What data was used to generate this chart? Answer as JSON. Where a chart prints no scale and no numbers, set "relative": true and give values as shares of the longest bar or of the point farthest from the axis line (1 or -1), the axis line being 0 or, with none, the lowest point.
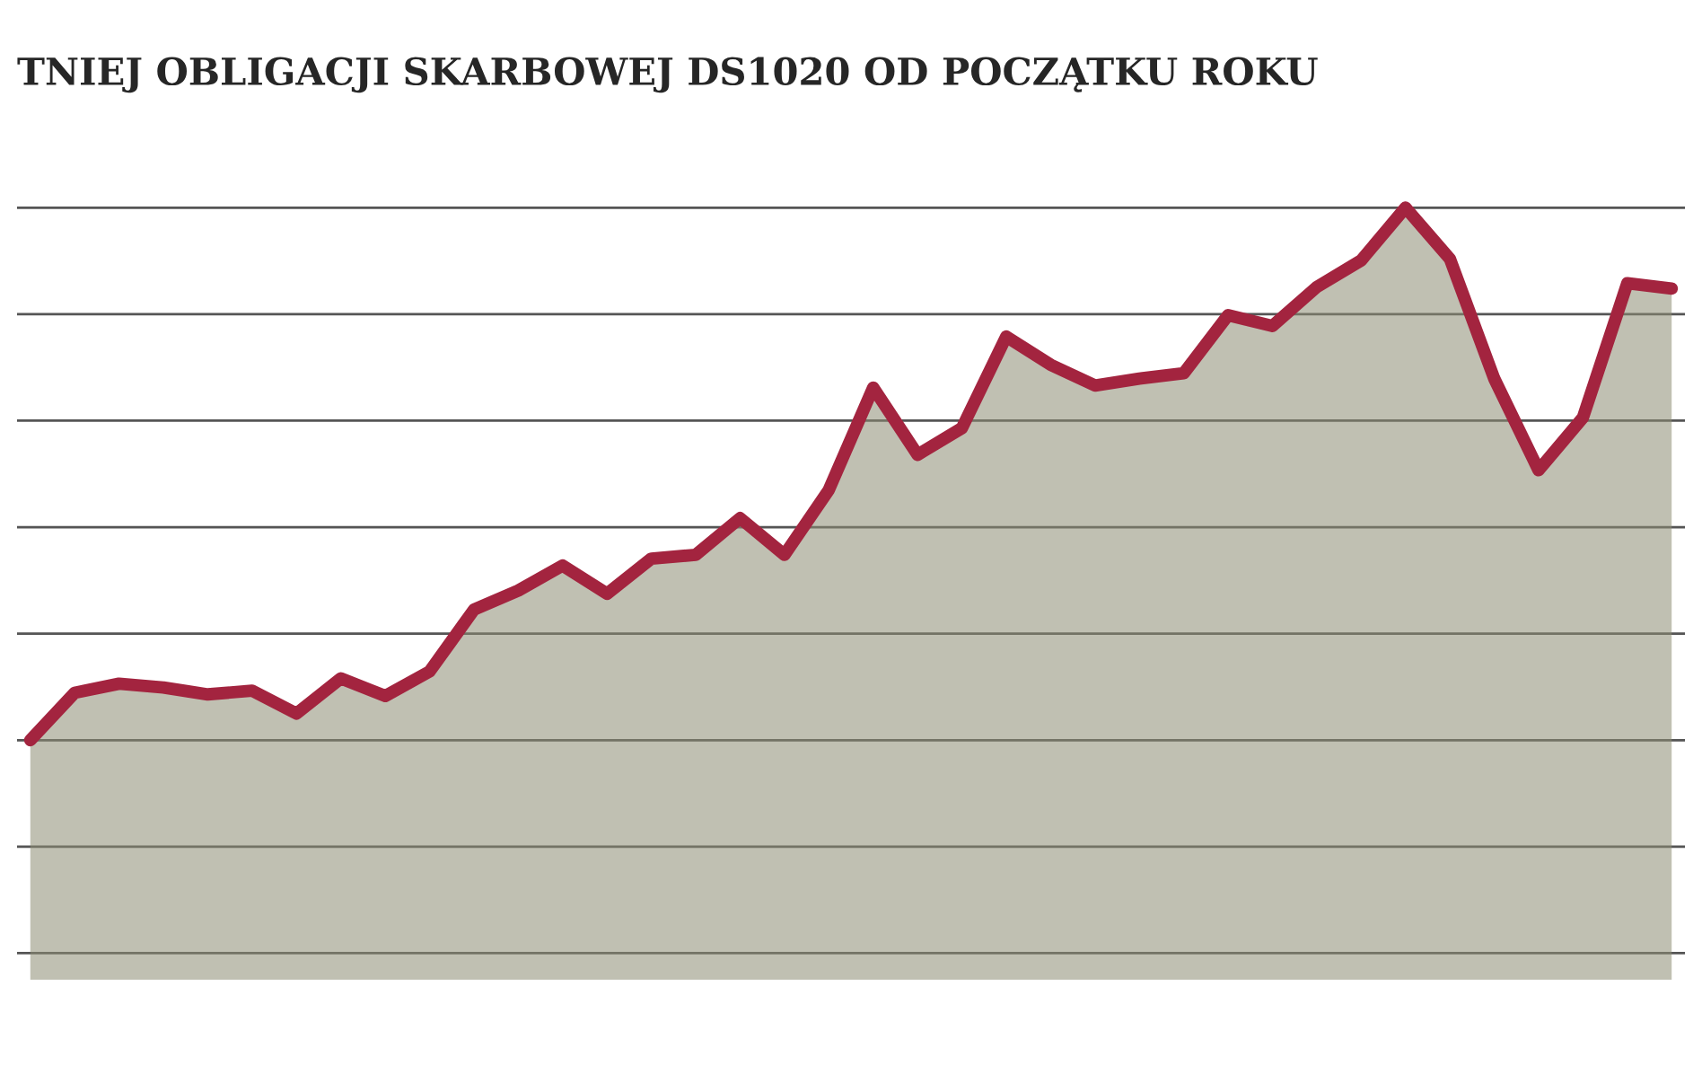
{
  "chart_data": {
    "type": "area",
    "title": "TNIEJ OBLIGACJI SKARBOWEJ DS1020 OD POCZĄTKU ROKU",
    "relative": true,
    "grid": "y",
    "legend": false,
    "categories": [
      null,
      null,
      null,
      null,
      null,
      null,
      null,
      null,
      null,
      null,
      null,
      null,
      null,
      null,
      null,
      null,
      null,
      null,
      null,
      null,
      null,
      null,
      null,
      null,
      null,
      null,
      null,
      null,
      null,
      null,
      null,
      null,
      null,
      null,
      null,
      null,
      null,
      null
    ],
    "series": [
      {
        "color": "#a3243f",
        "values": [
          0,
          0.089,
          0.106,
          0.099,
          0.086,
          0.093,
          0.05,
          0.116,
          0.083,
          0.129,
          0.245,
          0.281,
          0.328,
          0.275,
          0.341,
          0.348,
          0.417,
          0.348,
          0.47,
          0.662,
          0.536,
          0.586,
          0.758,
          0.705,
          0.666,
          0.679,
          0.689,
          0.798,
          0.778,
          0.851,
          0.901,
          1,
          0.904,
          0.679,
          0.507,
          0.606,
          0.858,
          0.848
        ]
      }
    ]
  }
}
